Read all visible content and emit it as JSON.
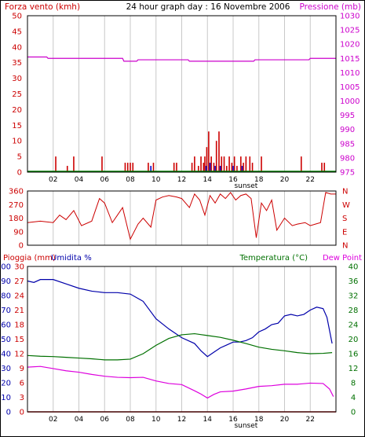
{
  "title": "24 hour graph day : 16 Novembre 2006",
  "hour_labels": [
    "02",
    "04",
    "06",
    "08",
    "10",
    "12",
    "14",
    "16",
    "18",
    "20",
    "22"
  ],
  "sunset_label": "sunset",
  "colors": {
    "wind": "#cc0000",
    "gust": "#0000cc",
    "pressure": "#cc00cc",
    "baseline": "#008000",
    "humidity": "#0000aa",
    "temperature": "#007000",
    "dewpoint": "#dd00dd",
    "rain": "#cc0000",
    "grid": "#c8c8c8"
  },
  "panels": {
    "wind": {
      "left_label": "Forza vento (kmh)",
      "right_label": "Pressione (mb)",
      "left_ticks": [
        "0",
        "5",
        "10",
        "15",
        "20",
        "25",
        "30",
        "35",
        "40",
        "45",
        "50"
      ],
      "right_ticks": [
        "975",
        "980",
        "985",
        "990",
        "995",
        "1000",
        "1005",
        "1010",
        "1015",
        "1020",
        "1025",
        "1030"
      ]
    },
    "direction": {
      "left_ticks": [
        "0",
        "90",
        "180",
        "270",
        "360"
      ],
      "right_ticks": [
        "N",
        "E",
        "S",
        "W",
        "N"
      ]
    },
    "weather": {
      "rain_label": "Pioggia (mm)",
      "humidity_label": "Umidita %",
      "temperature_label": "Temperatura (°C)",
      "dewpoint_label": "Dew Point",
      "left_ticks_hum": [
        "0",
        "10",
        "20",
        "30",
        "40",
        "50",
        "60",
        "70",
        "80",
        "90",
        "100"
      ],
      "left_ticks_rain": [
        "0",
        "3",
        "6",
        "9",
        "12",
        "15",
        "18",
        "21",
        "24",
        "27",
        "30"
      ],
      "right_ticks_temp": [
        "0",
        "4",
        "8",
        "12",
        "16",
        "20",
        "24",
        "28",
        "32",
        "36",
        "40"
      ]
    }
  },
  "chart_data": [
    {
      "type": "line",
      "x_unit": "hour",
      "series": [
        {
          "name": "Pressione (mb)",
          "axis": "right",
          "x": [
            0,
            1.5,
            1.6,
            7.4,
            7.5,
            8.5,
            8.6,
            12.5,
            12.6,
            17.6,
            17.7,
            21.9,
            22,
            24
          ],
          "values": [
            1015.5,
            1015.5,
            1015,
            1015,
            1014,
            1014,
            1014.5,
            1014.5,
            1014,
            1014,
            1014.5,
            1014.5,
            1015,
            1015
          ]
        }
      ],
      "wind_bars": {
        "speed_hours": [
          2.2,
          3.1,
          3.6,
          5.8,
          7.6,
          7.8,
          8.0,
          8.2,
          9.4,
          9.8,
          11.4,
          11.6,
          12.8,
          13.0,
          13.3,
          13.5,
          13.7,
          13.8,
          13.95,
          14.1,
          14.3,
          14.5,
          14.7,
          14.9,
          15.1,
          15.3,
          15.5,
          15.7,
          15.9,
          16.1,
          16.3,
          16.6,
          16.8,
          17.0,
          17.3,
          17.5,
          18.2,
          21.3,
          22.9,
          23.1
        ],
        "speed_values": [
          5,
          2,
          5,
          5,
          3,
          3,
          3,
          3,
          3,
          3,
          3,
          3,
          3,
          5,
          2,
          5,
          3,
          5,
          8,
          13,
          5,
          3,
          10,
          13,
          5,
          5,
          2,
          5,
          3,
          5,
          2,
          5,
          3,
          5,
          5,
          3,
          5,
          5,
          3,
          3
        ],
        "gust_hours": [
          9.6,
          13.9,
          14.2,
          14.6,
          15.0,
          16.0,
          16.7
        ],
        "gust_values": [
          2,
          2,
          3,
          2,
          2,
          2,
          2
        ],
        "ylim": [
          0,
          50
        ]
      },
      "ylim_pressure": [
        975,
        1030
      ]
    },
    {
      "type": "scatter",
      "name": "wind-direction",
      "ylim": [
        0,
        360
      ],
      "x": [
        0,
        1,
        2,
        2.5,
        3,
        3.6,
        4.2,
        5,
        5.6,
        6,
        6.6,
        7,
        7.4,
        8,
        8.6,
        9,
        9.6,
        10,
        10.5,
        11,
        11.6,
        12,
        12.6,
        13,
        13.4,
        13.8,
        14.2,
        14.6,
        15,
        15.4,
        15.8,
        16.2,
        16.6,
        17,
        17.4,
        17.8,
        18.2,
        18.6,
        19,
        19.4,
        20,
        20.6,
        21,
        21.6,
        22,
        22.4,
        22.8,
        23.2,
        23.6,
        24
      ],
      "values": [
        150,
        160,
        150,
        200,
        170,
        230,
        130,
        160,
        310,
        280,
        150,
        200,
        250,
        40,
        140,
        180,
        120,
        300,
        320,
        330,
        320,
        310,
        250,
        340,
        300,
        200,
        330,
        280,
        340,
        310,
        350,
        300,
        330,
        340,
        310,
        50,
        280,
        230,
        300,
        100,
        180,
        130,
        140,
        150,
        130,
        140,
        150,
        350,
        340,
        340
      ]
    },
    {
      "type": "line",
      "x_unit": "hour",
      "series": [
        {
          "name": "Umidita %",
          "axis": "humidity",
          "x": [
            0,
            0.5,
            1,
            2,
            3,
            4,
            5,
            6,
            7,
            8,
            9,
            10,
            11,
            12,
            13,
            13.5,
            14,
            14.5,
            15,
            15.5,
            16,
            16.5,
            17,
            17.5,
            18,
            18.5,
            19,
            19.5,
            20,
            20.5,
            21,
            21.5,
            22,
            22.5,
            23,
            23.3,
            23.7
          ],
          "values": [
            90,
            89,
            91,
            91,
            88,
            85,
            83,
            82,
            82,
            81,
            76,
            64,
            57,
            51,
            47,
            42,
            38,
            41,
            44,
            46,
            48,
            48,
            49,
            51,
            55,
            57,
            60,
            61,
            66,
            67,
            66,
            67,
            70,
            72,
            71,
            65,
            47
          ]
        },
        {
          "name": "Temperatura (°C)",
          "axis": "right",
          "x": [
            0,
            1,
            2,
            3,
            4,
            5,
            6,
            7,
            8,
            9,
            10,
            11,
            12,
            13,
            14,
            15,
            16,
            17,
            18,
            19,
            20,
            21,
            22,
            23,
            23.7
          ],
          "values": [
            15.5,
            15.3,
            15.2,
            15.0,
            14.8,
            14.6,
            14.3,
            14.3,
            14.5,
            16.0,
            18.3,
            20.2,
            21.2,
            21.5,
            21.0,
            20.5,
            19.7,
            18.8,
            17.8,
            17.2,
            16.8,
            16.3,
            16.0,
            16.1,
            16.3
          ]
        },
        {
          "name": "Dew Point",
          "axis": "right",
          "x": [
            0,
            1,
            2,
            3,
            4,
            5,
            6,
            7,
            8,
            9,
            10,
            11,
            12,
            13,
            13.5,
            14,
            14.5,
            15,
            16,
            17,
            18,
            19,
            20,
            21,
            22,
            23,
            23.5,
            23.8
          ],
          "values": [
            12.3,
            12.5,
            11.9,
            11.3,
            10.9,
            10.3,
            9.8,
            9.5,
            9.4,
            9.5,
            8.5,
            7.8,
            7.5,
            5.8,
            4.9,
            3.8,
            4.8,
            5.5,
            5.7,
            6.3,
            7.0,
            7.2,
            7.6,
            7.6,
            7.9,
            7.8,
            6.3,
            4.2
          ]
        },
        {
          "name": "Pioggia (mm)",
          "axis": "rain",
          "x": [
            0,
            24
          ],
          "values": [
            0,
            0
          ]
        }
      ],
      "ylim_humidity": [
        0,
        100
      ],
      "ylim_rain": [
        0,
        30
      ],
      "ylim_temperature": [
        0,
        40
      ]
    }
  ]
}
